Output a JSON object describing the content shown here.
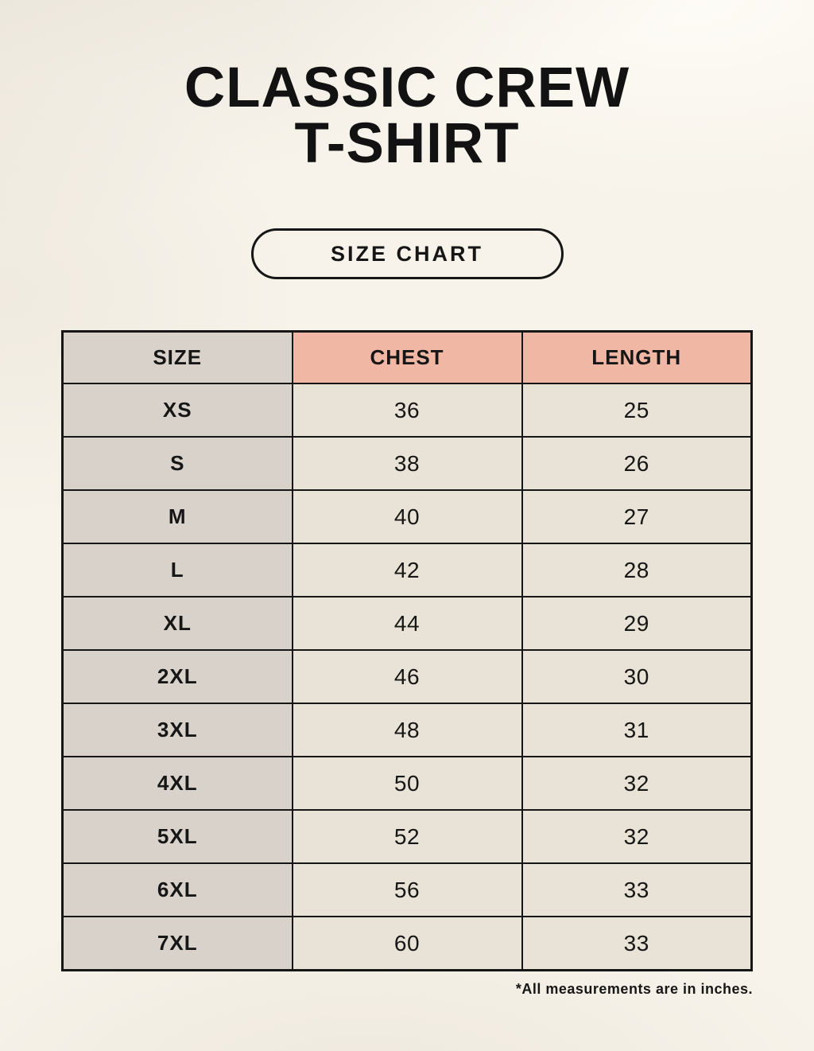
{
  "header": {
    "title_line1": "CLASSIC CREW",
    "title_line2": "T-SHIRT",
    "size_chart_button_label": "SIZE CHART"
  },
  "footnote": "*All measurements are in inches.",
  "colors": {
    "page_background": "#f7f3ea",
    "header_accent_pink": "#f0b7a4",
    "size_column_gray": "#d9d2cb",
    "data_cell_beige": "#e9e3d7",
    "table_border": "#161616",
    "text": "#161616"
  },
  "chart_data": {
    "type": "table",
    "title": "CLASSIC CREW T-SHIRT",
    "columns": [
      "SIZE",
      "CHEST",
      "LENGTH"
    ],
    "rows": [
      [
        "XS",
        "36",
        "25"
      ],
      [
        "S",
        "38",
        "26"
      ],
      [
        "M",
        "40",
        "27"
      ],
      [
        "L",
        "42",
        "28"
      ],
      [
        "XL",
        "44",
        "29"
      ],
      [
        "2XL",
        "46",
        "30"
      ],
      [
        "3XL",
        "48",
        "31"
      ],
      [
        "4XL",
        "50",
        "32"
      ],
      [
        "5XL",
        "52",
        "32"
      ],
      [
        "6XL",
        "56",
        "33"
      ],
      [
        "7XL",
        "60",
        "33"
      ]
    ],
    "units": "inches",
    "note": "*All measurements are in inches."
  }
}
